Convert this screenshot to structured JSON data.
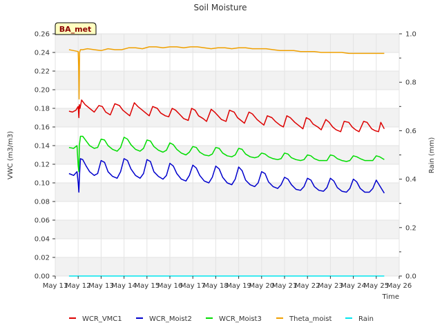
{
  "chart_data": {
    "type": "line",
    "title": "Soil Moisture",
    "xlabel": "Time",
    "ylabel": "VWC (m3/m3)",
    "y2label": "Rain (mm)",
    "site_label": "BA_met",
    "xlim": [
      11,
      26
    ],
    "ylim": [
      0,
      0.26
    ],
    "y2lim": [
      0,
      1.0
    ],
    "x_ticks": [
      {
        "x": 11,
        "label": "May 11"
      },
      {
        "x": 12,
        "label": "May 12"
      },
      {
        "x": 13,
        "label": "May 13"
      },
      {
        "x": 14,
        "label": "May 14"
      },
      {
        "x": 15,
        "label": "May 15"
      },
      {
        "x": 16,
        "label": "May 16"
      },
      {
        "x": 17,
        "label": "May 17"
      },
      {
        "x": 18,
        "label": "May 18"
      },
      {
        "x": 19,
        "label": "May 19"
      },
      {
        "x": 20,
        "label": "May 20"
      },
      {
        "x": 21,
        "label": "May 21"
      },
      {
        "x": 22,
        "label": "May 22"
      },
      {
        "x": 23,
        "label": "May 23"
      },
      {
        "x": 24,
        "label": "May 24"
      },
      {
        "x": 25,
        "label": "May 25"
      },
      {
        "x": 26,
        "label": "May 26"
      }
    ],
    "y_ticks": [
      {
        "y": 0.0,
        "label": "0.00"
      },
      {
        "y": 0.02,
        "label": "0.02"
      },
      {
        "y": 0.04,
        "label": "0.04"
      },
      {
        "y": 0.06,
        "label": "0.06"
      },
      {
        "y": 0.08,
        "label": "0.08"
      },
      {
        "y": 0.1,
        "label": "0.10"
      },
      {
        "y": 0.12,
        "label": "0.12"
      },
      {
        "y": 0.14,
        "label": "0.14"
      },
      {
        "y": 0.16,
        "label": "0.16"
      },
      {
        "y": 0.18,
        "label": "0.18"
      },
      {
        "y": 0.2,
        "label": "0.20"
      },
      {
        "y": 0.22,
        "label": "0.22"
      },
      {
        "y": 0.24,
        "label": "0.24"
      },
      {
        "y": 0.26,
        "label": "0.26"
      }
    ],
    "y2_ticks": [
      {
        "y": 0.0,
        "label": "0.0"
      },
      {
        "y": 0.2,
        "label": "0.2"
      },
      {
        "y": 0.4,
        "label": "0.4"
      },
      {
        "y": 0.6,
        "label": "0.6"
      },
      {
        "y": 0.8,
        "label": "0.8"
      },
      {
        "y": 1.0,
        "label": "1.0"
      }
    ],
    "series": [
      {
        "name": "WCR_VMC1",
        "color": "#dd0000",
        "axis": "left",
        "x": [
          11.6,
          11.75,
          11.9,
          12.0,
          12.03,
          12.05,
          12.08,
          12.15,
          12.3,
          12.5,
          12.7,
          12.9,
          13.05,
          13.2,
          13.4,
          13.6,
          13.8,
          13.95,
          14.1,
          14.25,
          14.45,
          14.6,
          14.8,
          14.95,
          15.1,
          15.25,
          15.45,
          15.6,
          15.8,
          15.95,
          16.1,
          16.25,
          16.45,
          16.6,
          16.8,
          16.95,
          17.1,
          17.25,
          17.45,
          17.6,
          17.8,
          17.95,
          18.1,
          18.25,
          18.45,
          18.6,
          18.8,
          18.95,
          19.1,
          19.25,
          19.45,
          19.6,
          19.8,
          19.95,
          20.1,
          20.25,
          20.45,
          20.6,
          20.8,
          20.95,
          21.1,
          21.25,
          21.45,
          21.6,
          21.8,
          21.95,
          22.1,
          22.25,
          22.45,
          22.6,
          22.8,
          22.95,
          23.1,
          23.25,
          23.45,
          23.6,
          23.8,
          23.95,
          24.1,
          24.25,
          24.45,
          24.6,
          24.8,
          24.95,
          25.1,
          25.2,
          25.35
        ],
        "values": [
          0.177,
          0.176,
          0.178,
          0.182,
          0.17,
          0.184,
          0.18,
          0.189,
          0.184,
          0.18,
          0.176,
          0.183,
          0.182,
          0.176,
          0.173,
          0.185,
          0.183,
          0.178,
          0.175,
          0.172,
          0.186,
          0.182,
          0.178,
          0.175,
          0.172,
          0.182,
          0.18,
          0.175,
          0.172,
          0.171,
          0.18,
          0.178,
          0.173,
          0.169,
          0.167,
          0.18,
          0.178,
          0.172,
          0.169,
          0.166,
          0.179,
          0.176,
          0.172,
          0.168,
          0.166,
          0.178,
          0.176,
          0.17,
          0.167,
          0.164,
          0.176,
          0.174,
          0.168,
          0.165,
          0.162,
          0.172,
          0.17,
          0.166,
          0.162,
          0.16,
          0.172,
          0.17,
          0.165,
          0.162,
          0.158,
          0.17,
          0.168,
          0.163,
          0.16,
          0.157,
          0.168,
          0.165,
          0.16,
          0.157,
          0.155,
          0.166,
          0.165,
          0.16,
          0.157,
          0.155,
          0.166,
          0.165,
          0.158,
          0.156,
          0.155,
          0.165,
          0.158
        ]
      },
      {
        "name": "WCR_Moist2",
        "color": "#0000cc",
        "axis": "left",
        "x": [
          11.6,
          11.8,
          11.95,
          12.0,
          12.03,
          12.05,
          12.1,
          12.2,
          12.35,
          12.5,
          12.7,
          12.85,
          13.0,
          13.15,
          13.3,
          13.5,
          13.7,
          13.85,
          14.0,
          14.15,
          14.3,
          14.5,
          14.7,
          14.85,
          15.0,
          15.15,
          15.3,
          15.5,
          15.7,
          15.85,
          16.0,
          16.15,
          16.3,
          16.5,
          16.7,
          16.85,
          17.0,
          17.15,
          17.3,
          17.5,
          17.7,
          17.85,
          18.0,
          18.15,
          18.3,
          18.5,
          18.7,
          18.85,
          19.0,
          19.15,
          19.3,
          19.5,
          19.7,
          19.85,
          20.0,
          20.15,
          20.3,
          20.5,
          20.7,
          20.85,
          21.0,
          21.15,
          21.3,
          21.5,
          21.7,
          21.85,
          22.0,
          22.15,
          22.3,
          22.5,
          22.7,
          22.85,
          23.0,
          23.15,
          23.3,
          23.5,
          23.7,
          23.85,
          24.0,
          24.15,
          24.3,
          24.5,
          24.7,
          24.85,
          25.0,
          25.15,
          25.35
        ],
        "values": [
          0.11,
          0.108,
          0.112,
          0.1,
          0.09,
          0.105,
          0.126,
          0.125,
          0.118,
          0.112,
          0.108,
          0.11,
          0.124,
          0.122,
          0.112,
          0.107,
          0.105,
          0.112,
          0.126,
          0.124,
          0.115,
          0.108,
          0.105,
          0.11,
          0.125,
          0.123,
          0.112,
          0.107,
          0.104,
          0.108,
          0.121,
          0.118,
          0.11,
          0.104,
          0.102,
          0.108,
          0.119,
          0.116,
          0.108,
          0.102,
          0.1,
          0.106,
          0.118,
          0.115,
          0.106,
          0.1,
          0.098,
          0.104,
          0.117,
          0.113,
          0.103,
          0.098,
          0.096,
          0.1,
          0.112,
          0.11,
          0.101,
          0.096,
          0.094,
          0.098,
          0.106,
          0.104,
          0.098,
          0.093,
          0.092,
          0.096,
          0.105,
          0.103,
          0.096,
          0.092,
          0.091,
          0.095,
          0.105,
          0.102,
          0.095,
          0.091,
          0.09,
          0.094,
          0.104,
          0.101,
          0.094,
          0.09,
          0.09,
          0.094,
          0.103,
          0.097,
          0.089
        ]
      },
      {
        "name": "WCR_Moist3",
        "color": "#00dd00",
        "axis": "left",
        "x": [
          11.6,
          11.8,
          11.95,
          12.0,
          12.03,
          12.05,
          12.1,
          12.2,
          12.35,
          12.5,
          12.7,
          12.85,
          13.0,
          13.15,
          13.3,
          13.5,
          13.7,
          13.85,
          14.0,
          14.15,
          14.3,
          14.5,
          14.7,
          14.85,
          15.0,
          15.15,
          15.3,
          15.5,
          15.7,
          15.85,
          16.0,
          16.15,
          16.3,
          16.5,
          16.7,
          16.85,
          17.0,
          17.15,
          17.3,
          17.5,
          17.7,
          17.85,
          18.0,
          18.15,
          18.3,
          18.5,
          18.7,
          18.85,
          19.0,
          19.15,
          19.3,
          19.5,
          19.7,
          19.85,
          20.0,
          20.15,
          20.3,
          20.5,
          20.7,
          20.85,
          21.0,
          21.15,
          21.3,
          21.5,
          21.7,
          21.85,
          22.0,
          22.15,
          22.3,
          22.5,
          22.7,
          22.85,
          23.0,
          23.15,
          23.3,
          23.5,
          23.7,
          23.85,
          24.0,
          24.15,
          24.3,
          24.5,
          24.7,
          24.85,
          25.0,
          25.15,
          25.35
        ],
        "values": [
          0.138,
          0.137,
          0.14,
          0.118,
          0.112,
          0.14,
          0.15,
          0.15,
          0.145,
          0.14,
          0.137,
          0.138,
          0.147,
          0.146,
          0.14,
          0.136,
          0.134,
          0.138,
          0.149,
          0.147,
          0.141,
          0.136,
          0.134,
          0.137,
          0.146,
          0.145,
          0.139,
          0.135,
          0.133,
          0.135,
          0.143,
          0.141,
          0.136,
          0.132,
          0.13,
          0.133,
          0.139,
          0.138,
          0.133,
          0.13,
          0.129,
          0.131,
          0.138,
          0.137,
          0.132,
          0.129,
          0.128,
          0.13,
          0.137,
          0.136,
          0.131,
          0.128,
          0.127,
          0.128,
          0.132,
          0.131,
          0.128,
          0.126,
          0.125,
          0.126,
          0.132,
          0.131,
          0.127,
          0.125,
          0.124,
          0.125,
          0.13,
          0.129,
          0.126,
          0.124,
          0.124,
          0.124,
          0.13,
          0.129,
          0.126,
          0.124,
          0.123,
          0.124,
          0.129,
          0.128,
          0.126,
          0.124,
          0.124,
          0.124,
          0.129,
          0.128,
          0.125
        ]
      },
      {
        "name": "Theta_moist",
        "color": "#f0a000",
        "axis": "left",
        "x": [
          11.6,
          11.8,
          12.0,
          12.02,
          12.04,
          12.06,
          12.1,
          12.2,
          12.4,
          12.7,
          13.0,
          13.3,
          13.6,
          13.9,
          14.2,
          14.5,
          14.8,
          15.1,
          15.4,
          15.7,
          16.0,
          16.3,
          16.6,
          16.9,
          17.2,
          17.5,
          17.8,
          18.1,
          18.4,
          18.7,
          19.0,
          19.3,
          19.6,
          19.9,
          20.2,
          20.5,
          20.8,
          21.1,
          21.4,
          21.7,
          22.0,
          22.3,
          22.6,
          22.9,
          23.2,
          23.5,
          23.8,
          24.1,
          24.4,
          24.7,
          25.0,
          25.35
        ],
        "values": [
          0.243,
          0.242,
          0.241,
          0.225,
          0.19,
          0.24,
          0.243,
          0.243,
          0.244,
          0.243,
          0.242,
          0.244,
          0.243,
          0.243,
          0.245,
          0.245,
          0.244,
          0.246,
          0.246,
          0.245,
          0.246,
          0.246,
          0.245,
          0.246,
          0.246,
          0.245,
          0.244,
          0.245,
          0.245,
          0.244,
          0.245,
          0.245,
          0.244,
          0.244,
          0.244,
          0.243,
          0.242,
          0.242,
          0.242,
          0.241,
          0.241,
          0.241,
          0.24,
          0.24,
          0.24,
          0.24,
          0.239,
          0.239,
          0.239,
          0.239,
          0.239,
          0.239
        ]
      },
      {
        "name": "Rain",
        "color": "#00e5ee",
        "axis": "right",
        "x": [
          11.6,
          25.35
        ],
        "values": [
          0.0,
          0.0
        ]
      }
    ]
  }
}
